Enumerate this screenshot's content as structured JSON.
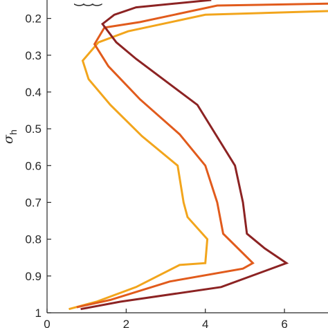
{
  "chart_data": {
    "type": "line",
    "title": "",
    "xlabel": "",
    "ylabel": "σ",
    "ylabel_subscript": "h",
    "xlim": [
      0,
      7.1
    ],
    "ylim": [
      0.15,
      1.0
    ],
    "y_reversed": true,
    "grid": false,
    "x_ticks": [
      0,
      2,
      4,
      6
    ],
    "y_ticks": [
      0.2,
      0.3,
      0.4,
      0.5,
      0.6,
      0.7,
      0.8,
      0.9,
      1
    ],
    "series": [
      {
        "color": "#f2a51c",
        "x": [
          0.55,
          1.25,
          2.25,
          3.35,
          4.0,
          4.05,
          3.55,
          3.45,
          3.3,
          2.4,
          1.6,
          1.05,
          0.9,
          1.3,
          2.05,
          4.0,
          7.1
        ],
        "y": [
          0.99,
          0.97,
          0.93,
          0.87,
          0.865,
          0.8,
          0.74,
          0.7,
          0.6,
          0.52,
          0.435,
          0.365,
          0.315,
          0.265,
          0.235,
          0.19,
          0.18
        ]
      },
      {
        "color": "#e15b1c",
        "x": [
          0.75,
          1.6,
          3.1,
          4.95,
          5.2,
          4.45,
          4.3,
          4.0,
          3.35,
          2.35,
          1.55,
          1.2,
          1.45,
          2.35,
          4.3,
          7.1
        ],
        "y": [
          0.985,
          0.965,
          0.915,
          0.88,
          0.865,
          0.785,
          0.7,
          0.6,
          0.515,
          0.42,
          0.33,
          0.27,
          0.225,
          0.21,
          0.165,
          0.16
        ]
      },
      {
        "color": "#8c2323",
        "x": [
          0.85,
          1.85,
          4.4,
          6.05,
          5.5,
          5.05,
          4.95,
          4.75,
          3.8,
          2.25,
          1.75,
          1.4,
          1.7,
          2.25,
          4.15
        ],
        "y": [
          0.99,
          0.97,
          0.93,
          0.865,
          0.825,
          0.785,
          0.7,
          0.6,
          0.435,
          0.31,
          0.265,
          0.215,
          0.19,
          0.17,
          0.15
        ]
      }
    ],
    "partial_annotation": "‿‿‿"
  }
}
